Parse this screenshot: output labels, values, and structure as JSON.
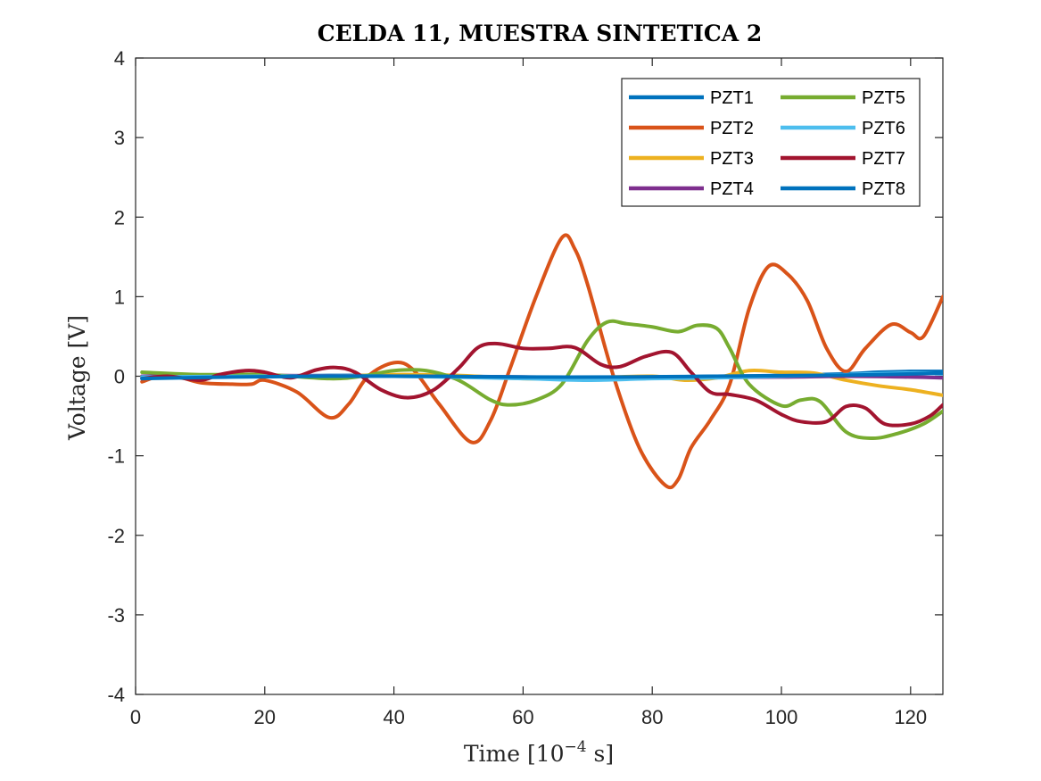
{
  "chart_data": {
    "type": "line",
    "title": "CELDA 11, MUESTRA SINTETICA 2",
    "xlabel": "Time [10",
    "xlabel_exp": "−4",
    "xlabel_unit": " s]",
    "ylabel": "Voltage [V]",
    "xlim": [
      0,
      125
    ],
    "ylim": [
      -4,
      4
    ],
    "xticks": [
      0,
      20,
      40,
      60,
      80,
      100,
      120
    ],
    "yticks": [
      -4,
      -3,
      -2,
      -1,
      0,
      1,
      2,
      3,
      4
    ],
    "legend_position": "top-right",
    "legend_columns": 2,
    "series": [
      {
        "name": "PZT1",
        "color": "#0072BD",
        "x": [
          1,
          10,
          20,
          30,
          40,
          50,
          60,
          70,
          80,
          90,
          100,
          110,
          115,
          120,
          125
        ],
        "y": [
          -0.02,
          -0.01,
          0.0,
          0.01,
          0.01,
          0.0,
          -0.01,
          -0.02,
          -0.01,
          0.0,
          0.01,
          0.03,
          0.05,
          0.06,
          0.06
        ]
      },
      {
        "name": "PZT2",
        "color": "#D95319",
        "x": [
          1,
          5,
          10,
          15,
          18,
          20,
          25,
          30,
          33,
          36,
          40,
          43,
          47,
          52,
          55,
          58,
          62,
          66,
          68,
          70,
          74,
          78,
          82,
          84,
          86,
          89,
          92,
          95,
          98,
          101,
          104,
          107,
          110,
          113,
          117,
          120,
          122,
          125
        ],
        "y": [
          -0.07,
          0.02,
          -0.08,
          -0.1,
          -0.1,
          -0.05,
          -0.2,
          -0.52,
          -0.35,
          0.0,
          0.17,
          0.08,
          -0.35,
          -0.83,
          -0.55,
          0.1,
          1.0,
          1.74,
          1.6,
          1.15,
          0.0,
          -0.9,
          -1.37,
          -1.3,
          -0.9,
          -0.55,
          -0.1,
          0.85,
          1.38,
          1.28,
          0.95,
          0.35,
          0.06,
          0.35,
          0.65,
          0.55,
          0.5,
          1.0
        ]
      },
      {
        "name": "PZT3",
        "color": "#EDB120",
        "x": [
          1,
          10,
          20,
          30,
          40,
          50,
          60,
          70,
          80,
          85,
          90,
          95,
          100,
          105,
          110,
          115,
          120,
          125
        ],
        "y": [
          0.0,
          0.0,
          0.01,
          0.0,
          0.02,
          0.01,
          -0.03,
          -0.02,
          0.0,
          -0.05,
          -0.02,
          0.07,
          0.05,
          0.04,
          -0.05,
          -0.12,
          -0.17,
          -0.24
        ]
      },
      {
        "name": "PZT4",
        "color": "#7E2F8E",
        "x": [
          1,
          20,
          40,
          60,
          80,
          100,
          110,
          120,
          125
        ],
        "y": [
          0.0,
          0.01,
          0.0,
          -0.01,
          -0.02,
          -0.01,
          0.0,
          -0.01,
          -0.02
        ]
      },
      {
        "name": "PZT5",
        "color": "#77AC30",
        "x": [
          1,
          10,
          20,
          30,
          35,
          40,
          45,
          50,
          55,
          58,
          62,
          66,
          70,
          73,
          76,
          80,
          84,
          87,
          90,
          92,
          95,
          100,
          103,
          106,
          110,
          114,
          118,
          122,
          125
        ],
        "y": [
          0.05,
          0.02,
          0.02,
          -0.03,
          0.0,
          0.07,
          0.07,
          -0.05,
          -0.3,
          -0.36,
          -0.3,
          -0.1,
          0.45,
          0.68,
          0.66,
          0.62,
          0.56,
          0.64,
          0.6,
          0.35,
          -0.1,
          -0.37,
          -0.3,
          -0.32,
          -0.7,
          -0.78,
          -0.72,
          -0.6,
          -0.44
        ]
      },
      {
        "name": "PZT6",
        "color": "#4DBEEE",
        "x": [
          1,
          20,
          40,
          60,
          70,
          80,
          90,
          100,
          110,
          120,
          125
        ],
        "y": [
          -0.01,
          0.0,
          0.0,
          -0.03,
          -0.05,
          -0.03,
          -0.02,
          0.0,
          0.02,
          0.04,
          0.03
        ]
      },
      {
        "name": "PZT7",
        "color": "#A2142F",
        "x": [
          1,
          5,
          10,
          13,
          17,
          20,
          24,
          28,
          31,
          34,
          38,
          42,
          46,
          50,
          53,
          56,
          60,
          64,
          68,
          72,
          75,
          79,
          83,
          86,
          89,
          92,
          96,
          100,
          103,
          107,
          110,
          113,
          116,
          120,
          123,
          125
        ],
        "y": [
          -0.03,
          0.0,
          -0.05,
          0.02,
          0.07,
          0.05,
          -0.02,
          0.08,
          0.11,
          0.05,
          -0.17,
          -0.27,
          -0.18,
          0.1,
          0.36,
          0.41,
          0.35,
          0.35,
          0.36,
          0.15,
          0.12,
          0.25,
          0.3,
          0.05,
          -0.2,
          -0.23,
          -0.3,
          -0.48,
          -0.57,
          -0.57,
          -0.38,
          -0.4,
          -0.6,
          -0.6,
          -0.5,
          -0.36
        ]
      },
      {
        "name": "PZT8",
        "color": "#0072BD",
        "x": [
          1,
          15,
          30,
          45,
          60,
          75,
          90,
          105,
          115,
          125
        ],
        "y": [
          -0.03,
          -0.01,
          0.0,
          0.0,
          -0.01,
          -0.01,
          0.0,
          0.01,
          0.02,
          0.04
        ]
      }
    ]
  }
}
